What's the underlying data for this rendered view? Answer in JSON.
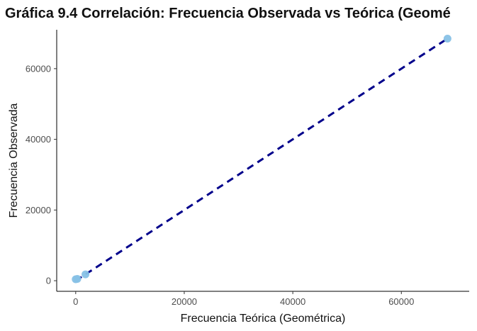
{
  "chart_data": {
    "type": "scatter",
    "title": "Gráfica 9.4 Correlación: Frecuencia Observada vs Teórica (Geomé",
    "xlabel": "Frecuencia Teórica (Geométrica)",
    "ylabel": "Frecuencia Observada",
    "xlim": [
      -3500,
      72500
    ],
    "ylim": [
      -3000,
      71000
    ],
    "x_ticks": [
      0,
      20000,
      40000,
      60000
    ],
    "x_tick_labels": [
      "0",
      "20000",
      "40000",
      "60000"
    ],
    "y_ticks": [
      0,
      20000,
      40000,
      60000
    ],
    "y_tick_labels": [
      "0",
      "20000",
      "40000",
      "60000"
    ],
    "points": [
      {
        "x": 0,
        "y": 400
      },
      {
        "x": 300,
        "y": 500
      },
      {
        "x": 1800,
        "y": 1800
      },
      {
        "x": 68500,
        "y": 68500
      }
    ],
    "fit_line": {
      "x": [
        0,
        68500
      ],
      "y": [
        0,
        68500
      ],
      "style": "dashed",
      "color": "#00008b"
    },
    "point_color": "#87c1e6",
    "grid": false
  }
}
